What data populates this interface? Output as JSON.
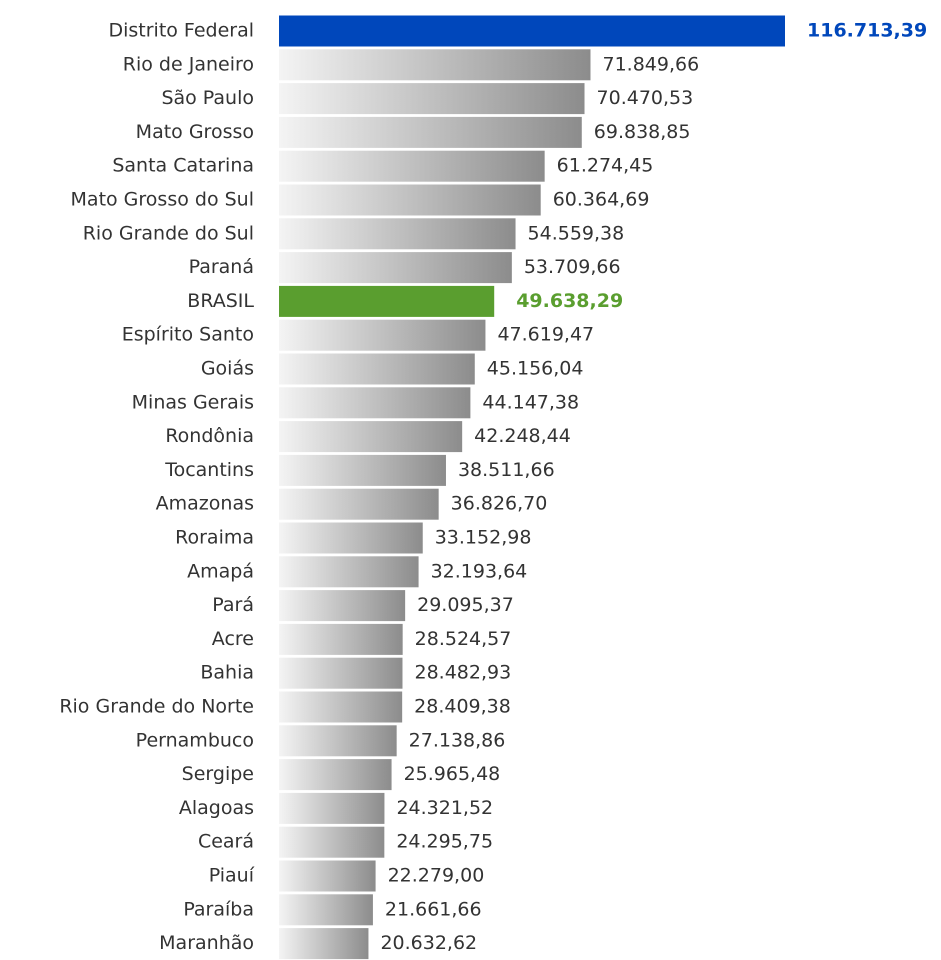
{
  "chart_data": {
    "type": "hbar",
    "categories": [
      "Distrito Federal",
      "Rio de Janeiro",
      "São Paulo",
      "Mato Grosso",
      "Santa Catarina",
      "Mato Grosso do Sul",
      "Rio Grande do Sul",
      "Paraná",
      "BRASIL",
      "Espírito Santo",
      "Goiás",
      "Minas Gerais",
      "Rondônia",
      "Tocantins",
      "Amazonas",
      "Roraima",
      "Amapá",
      "Pará",
      "Acre",
      "Bahia",
      "Rio Grande do Norte",
      "Pernambuco",
      "Sergipe",
      "Alagoas",
      "Ceará",
      "Piauí",
      "Paraíba",
      "Maranhão"
    ],
    "values": [
      116713.39,
      71849.66,
      70470.53,
      69838.85,
      61274.45,
      60364.69,
      54559.38,
      53709.66,
      49638.29,
      47619.47,
      45156.04,
      44147.38,
      42248.44,
      38511.66,
      36826.7,
      33152.98,
      32193.64,
      29095.37,
      28524.57,
      28482.93,
      28409.38,
      27138.86,
      25965.48,
      24321.52,
      24295.75,
      22279.0,
      21661.66,
      20632.62
    ],
    "value_labels": [
      "116.713,39",
      "71.849,66",
      "70.470,53",
      "69.838,85",
      "61.274,45",
      "60.364,69",
      "54.559,38",
      "53.709,66",
      "49.638,29",
      "47.619,47",
      "45.156,04",
      "44.147,38",
      "42.248,44",
      "38.511,66",
      "36.826,70",
      "33.152,98",
      "32.193,64",
      "29.095,37",
      "28.524,57",
      "28.482,93",
      "28.409,38",
      "27.138,86",
      "25.965,48",
      "24.321,52",
      "24.295,75",
      "22.279,00",
      "21.661,66",
      "20.632,62"
    ],
    "color": "#8c8c8c",
    "colors": [
      "#0047bb",
      "#8c8c8c",
      "#8c8c8c",
      "#8c8c8c",
      "#8c8c8c",
      "#8c8c8c",
      "#8c8c8c",
      "#8c8c8c",
      "#5a9e2f",
      "#8c8c8c",
      "#8c8c8c",
      "#8c8c8c",
      "#8c8c8c",
      "#8c8c8c",
      "#8c8c8c",
      "#8c8c8c",
      "#8c8c8c",
      "#8c8c8c",
      "#8c8c8c",
      "#8c8c8c",
      "#8c8c8c",
      "#8c8c8c",
      "#8c8c8c",
      "#8c8c8c",
      "#8c8c8c",
      "#8c8c8c",
      "#8c8c8c",
      "#8c8c8c"
    ]
  }
}
